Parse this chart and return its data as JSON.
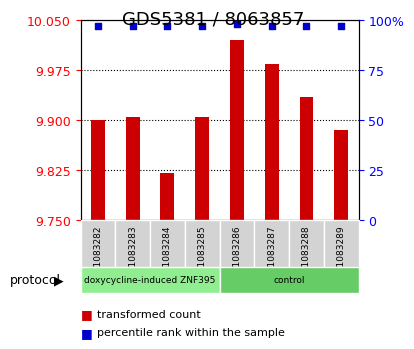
{
  "title": "GDS5381 / 8063857",
  "samples": [
    "GSM1083282",
    "GSM1083283",
    "GSM1083284",
    "GSM1083285",
    "GSM1083286",
    "GSM1083287",
    "GSM1083288",
    "GSM1083289"
  ],
  "red_values": [
    9.9,
    9.905,
    9.82,
    9.905,
    10.02,
    9.985,
    9.935,
    9.885
  ],
  "blue_values": [
    97,
    97,
    97,
    97,
    98,
    97,
    97,
    97
  ],
  "ylim_left": [
    9.75,
    10.05
  ],
  "ylim_right": [
    0,
    100
  ],
  "yticks_left": [
    9.75,
    9.825,
    9.9,
    9.975,
    10.05
  ],
  "yticks_right": [
    0,
    25,
    50,
    75,
    100
  ],
  "protocol_groups": [
    {
      "label": "doxycycline-induced ZNF395",
      "count": 4,
      "color": "#90EE90"
    },
    {
      "label": "control",
      "count": 4,
      "color": "#66CC66"
    }
  ],
  "red_color": "#CC0000",
  "blue_color": "#0000CC",
  "bar_bottom": 9.75,
  "title_fontsize": 13,
  "tick_fontsize": 9,
  "label_fontsize": 9
}
